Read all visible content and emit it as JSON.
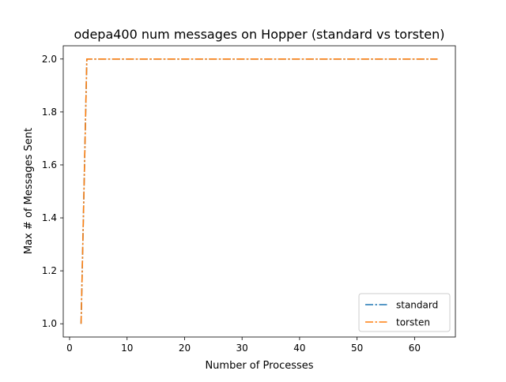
{
  "chart_data": {
    "type": "line",
    "title": "odepa400 num messages on Hopper (standard vs torsten)",
    "xlabel": "Number of Processes",
    "ylabel": "Max # of Messages Sent",
    "xlim": [
      -1.1,
      67.1
    ],
    "ylim": [
      0.95,
      2.05
    ],
    "xticks": [
      0,
      10,
      20,
      30,
      40,
      50,
      60
    ],
    "yticks": [
      1.0,
      1.2,
      1.4,
      1.6,
      1.8,
      2.0
    ],
    "xtick_labels": [
      "0",
      "10",
      "20",
      "30",
      "40",
      "50",
      "60"
    ],
    "ytick_labels": [
      "1.0",
      "1.2",
      "1.4",
      "1.6",
      "1.8",
      "2.0"
    ],
    "legend_position": "lower-right",
    "grid": false,
    "series": [
      {
        "name": "standard",
        "color": "#1f77b4",
        "x": [
          2,
          3,
          4,
          5,
          6,
          7,
          8,
          9,
          10,
          11,
          12,
          13,
          14,
          15,
          16,
          17,
          18,
          19,
          20,
          21,
          22,
          23,
          24,
          25,
          26,
          27,
          28,
          29,
          30,
          31,
          32,
          33,
          34,
          35,
          36,
          37,
          38,
          39,
          40,
          41,
          42,
          43,
          44,
          45,
          46,
          47,
          48,
          49,
          50,
          51,
          52,
          53,
          54,
          55,
          56,
          57,
          58,
          59,
          60,
          61,
          62,
          63,
          64
        ],
        "y": [
          1,
          2,
          2,
          2,
          2,
          2,
          2,
          2,
          2,
          2,
          2,
          2,
          2,
          2,
          2,
          2,
          2,
          2,
          2,
          2,
          2,
          2,
          2,
          2,
          2,
          2,
          2,
          2,
          2,
          2,
          2,
          2,
          2,
          2,
          2,
          2,
          2,
          2,
          2,
          2,
          2,
          2,
          2,
          2,
          2,
          2,
          2,
          2,
          2,
          2,
          2,
          2,
          2,
          2,
          2,
          2,
          2,
          2,
          2,
          2,
          2,
          2,
          2
        ]
      },
      {
        "name": "torsten",
        "color": "#ff7f0e",
        "x": [
          2,
          3,
          4,
          5,
          6,
          7,
          8,
          9,
          10,
          11,
          12,
          13,
          14,
          15,
          16,
          17,
          18,
          19,
          20,
          21,
          22,
          23,
          24,
          25,
          26,
          27,
          28,
          29,
          30,
          31,
          32,
          33,
          34,
          35,
          36,
          37,
          38,
          39,
          40,
          41,
          42,
          43,
          44,
          45,
          46,
          47,
          48,
          49,
          50,
          51,
          52,
          53,
          54,
          55,
          56,
          57,
          58,
          59,
          60,
          61,
          62,
          63,
          64
        ],
        "y": [
          1,
          2,
          2,
          2,
          2,
          2,
          2,
          2,
          2,
          2,
          2,
          2,
          2,
          2,
          2,
          2,
          2,
          2,
          2,
          2,
          2,
          2,
          2,
          2,
          2,
          2,
          2,
          2,
          2,
          2,
          2,
          2,
          2,
          2,
          2,
          2,
          2,
          2,
          2,
          2,
          2,
          2,
          2,
          2,
          2,
          2,
          2,
          2,
          2,
          2,
          2,
          2,
          2,
          2,
          2,
          2,
          2,
          2,
          2,
          2,
          2,
          2,
          2
        ]
      }
    ]
  }
}
